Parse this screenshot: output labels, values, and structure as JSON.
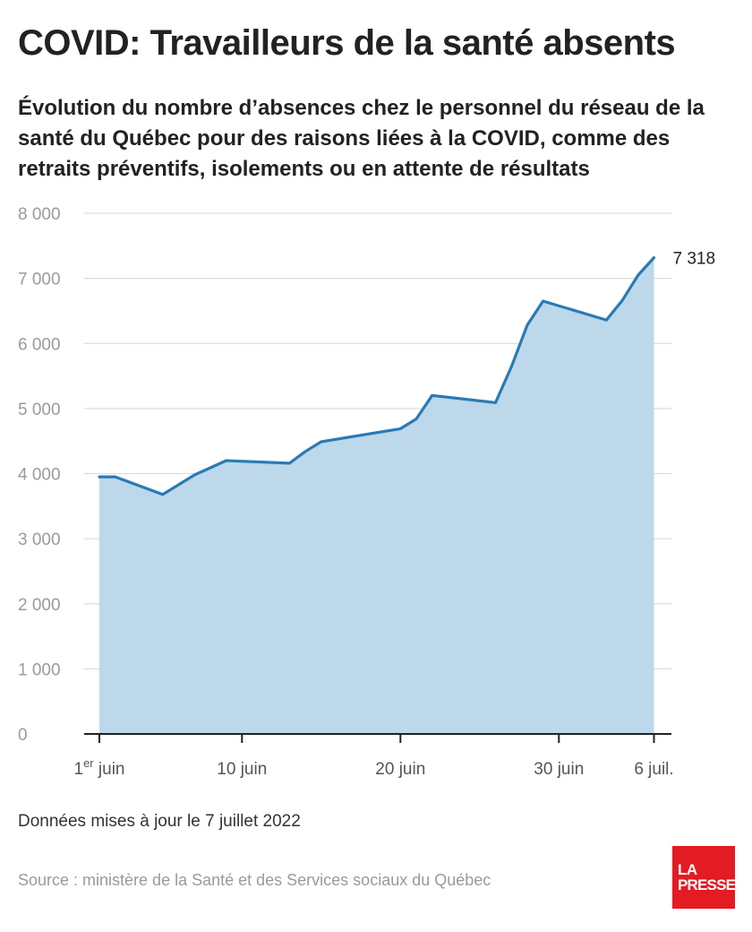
{
  "header": {
    "title": "COVID: Travailleurs de la santé absents",
    "subtitle": "Évolution du nombre d’absences chez le personnel du réseau de la santé du Québec pour des raisons liées à la COVID, comme des retraits préventifs, isolements ou en attente de résultats"
  },
  "chart_data": {
    "type": "area",
    "title": "COVID: Travailleurs de la santé absents",
    "subtitle": "Évolution du nombre d’absences chez le personnel du réseau de la santé du Québec pour des raisons liées à la COVID, comme des retraits préventifs, isolements ou en attente de résultats",
    "xlabel": "",
    "ylabel": "",
    "ylim": [
      0,
      8000
    ],
    "y_ticks": [
      0,
      1000,
      2000,
      3000,
      4000,
      5000,
      6000,
      7000,
      8000
    ],
    "y_tick_labels": [
      "0",
      "1 000",
      "2 000",
      "3 000",
      "4 000",
      "5 000",
      "6 000",
      "7 000",
      "8 000"
    ],
    "x_ticks": [
      {
        "x": "2022-06-01",
        "label": "1",
        "sup": "er",
        "suffix": " juin"
      },
      {
        "x": "2022-06-10",
        "label": "10 juin"
      },
      {
        "x": "2022-06-20",
        "label": "20 juin"
      },
      {
        "x": "2022-06-30",
        "label": "30 juin"
      },
      {
        "x": "2022-07-06",
        "label": "6 juil."
      }
    ],
    "grid": true,
    "colors": {
      "line": "#2a7ab4",
      "fill": "#bcd8ea",
      "grid": "#dddddd",
      "axis": "#222222"
    },
    "end_label": "7 318",
    "x": [
      "2022-06-01",
      "2022-06-02",
      "2022-06-05",
      "2022-06-07",
      "2022-06-09",
      "2022-06-13",
      "2022-06-14",
      "2022-06-15",
      "2022-06-20",
      "2022-06-21",
      "2022-06-22",
      "2022-06-26",
      "2022-06-27",
      "2022-06-28",
      "2022-06-29",
      "2022-07-03",
      "2022-07-04",
      "2022-07-05",
      "2022-07-06"
    ],
    "values": [
      3950,
      3950,
      3680,
      3980,
      4200,
      4160,
      4340,
      4490,
      4690,
      4840,
      5200,
      5090,
      5640,
      6280,
      6650,
      6360,
      6660,
      7050,
      7318
    ]
  },
  "footer": {
    "note": "Données mises à jour le 7 juillet 2022",
    "source": "Source : ministère de la Santé et des Services sociaux du Québec",
    "logo_line1": "LA",
    "logo_line2": "PRESSE",
    "logo_color": "#e31b23"
  }
}
